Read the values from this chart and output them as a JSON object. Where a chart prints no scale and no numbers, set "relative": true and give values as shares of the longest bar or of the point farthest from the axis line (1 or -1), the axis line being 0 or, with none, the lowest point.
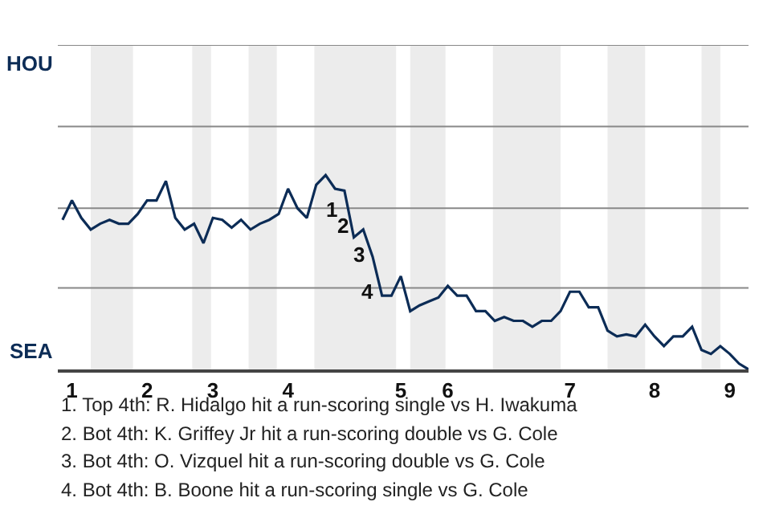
{
  "chart_data": {
    "type": "line",
    "relative": true,
    "categories": [
      null,
      "1",
      null,
      null,
      null,
      null,
      null,
      null,
      null,
      "2",
      null,
      null,
      null,
      null,
      null,
      null,
      "3",
      null,
      null,
      null,
      null,
      null,
      null,
      null,
      "4",
      null,
      null,
      null,
      null,
      null,
      null,
      null,
      null,
      null,
      null,
      null,
      "5",
      null,
      null,
      null,
      null,
      "6",
      null,
      null,
      null,
      null,
      null,
      null,
      null,
      null,
      null,
      null,
      null,
      null,
      "7",
      null,
      null,
      null,
      null,
      null,
      null,
      null,
      null,
      "8",
      null,
      null,
      null,
      null,
      null,
      null,
      null,
      "9",
      null,
      null
    ],
    "series": [
      {
        "color": "#0c2c56",
        "values": [
          0.77,
          0.87,
          0.78,
          0.72,
          0.75,
          0.77,
          0.75,
          0.75,
          0.8,
          0.87,
          0.87,
          0.97,
          0.78,
          0.72,
          0.75,
          0.65,
          0.78,
          0.77,
          0.73,
          0.77,
          0.72,
          0.75,
          0.77,
          0.8,
          0.93,
          0.83,
          0.78,
          0.95,
          1,
          0.93,
          0.92,
          0.68,
          0.72,
          0.58,
          0.38,
          0.38,
          0.48,
          0.3,
          0.33,
          0.35,
          0.37,
          0.43,
          0.38,
          0.38,
          0.3,
          0.3,
          0.25,
          0.27,
          0.25,
          0.25,
          0.22,
          0.25,
          0.25,
          0.3,
          0.4,
          0.4,
          0.32,
          0.32,
          0.2,
          0.17,
          0.18,
          0.17,
          0.23,
          0.17,
          0.12,
          0.17,
          0.17,
          0.22,
          0.1,
          0.08,
          0.12,
          0.08,
          0.03,
          0
        ]
      }
    ],
    "marker": "none",
    "line_style": "solid",
    "ref_lines": [
      {
        "axis": "y",
        "value": 0.42,
        "color": "#888888"
      },
      {
        "axis": "y",
        "value": 0.83,
        "color": "#888888"
      },
      {
        "axis": "y",
        "value": 1.25,
        "color": "#888888"
      },
      {
        "axis": "y",
        "value": 1.67,
        "color": "#888888"
      }
    ],
    "annotations": [
      "HOU",
      "SEA",
      "1",
      "2",
      "3",
      "4",
      "1. Top 4th: R. Hidalgo hit a run-scoring single vs H. Iwakuma",
      "2. Bot 4th: K. Griffey Jr hit a run-scoring double vs G. Cole",
      "3. Bot 4th: O. Vizquel hit a run-scoring double vs G. Cole",
      "4. Bot 4th: B. Boone hit a run-scoring single vs G. Cole"
    ]
  }
}
